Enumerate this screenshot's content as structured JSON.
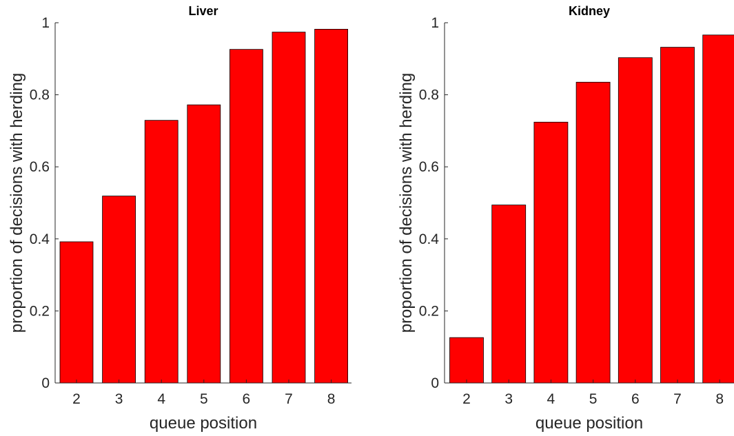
{
  "figure": {
    "bar_color": "#ff0000",
    "axis_color": "#262626"
  },
  "chart_data": [
    {
      "type": "bar",
      "title": "Liver",
      "xlabel": "queue position",
      "ylabel": "proportion of decisions with herding",
      "categories": [
        "2",
        "3",
        "4",
        "5",
        "6",
        "7",
        "8"
      ],
      "values": [
        0.392,
        0.519,
        0.729,
        0.772,
        0.926,
        0.974,
        0.982
      ],
      "ylim": [
        0,
        1
      ],
      "yticks": [
        "0",
        "0.2",
        "0.4",
        "0.6",
        "0.8",
        "1"
      ],
      "grid": false
    },
    {
      "type": "bar",
      "title": "Kidney",
      "xlabel": "queue position",
      "ylabel": "proportion of decisions with herding",
      "categories": [
        "2",
        "3",
        "4",
        "5",
        "6",
        "7",
        "8"
      ],
      "values": [
        0.126,
        0.494,
        0.724,
        0.835,
        0.903,
        0.932,
        0.966
      ],
      "ylim": [
        0,
        1
      ],
      "yticks": [
        "0",
        "0.2",
        "0.4",
        "0.6",
        "0.8",
        "1"
      ],
      "grid": false
    }
  ]
}
